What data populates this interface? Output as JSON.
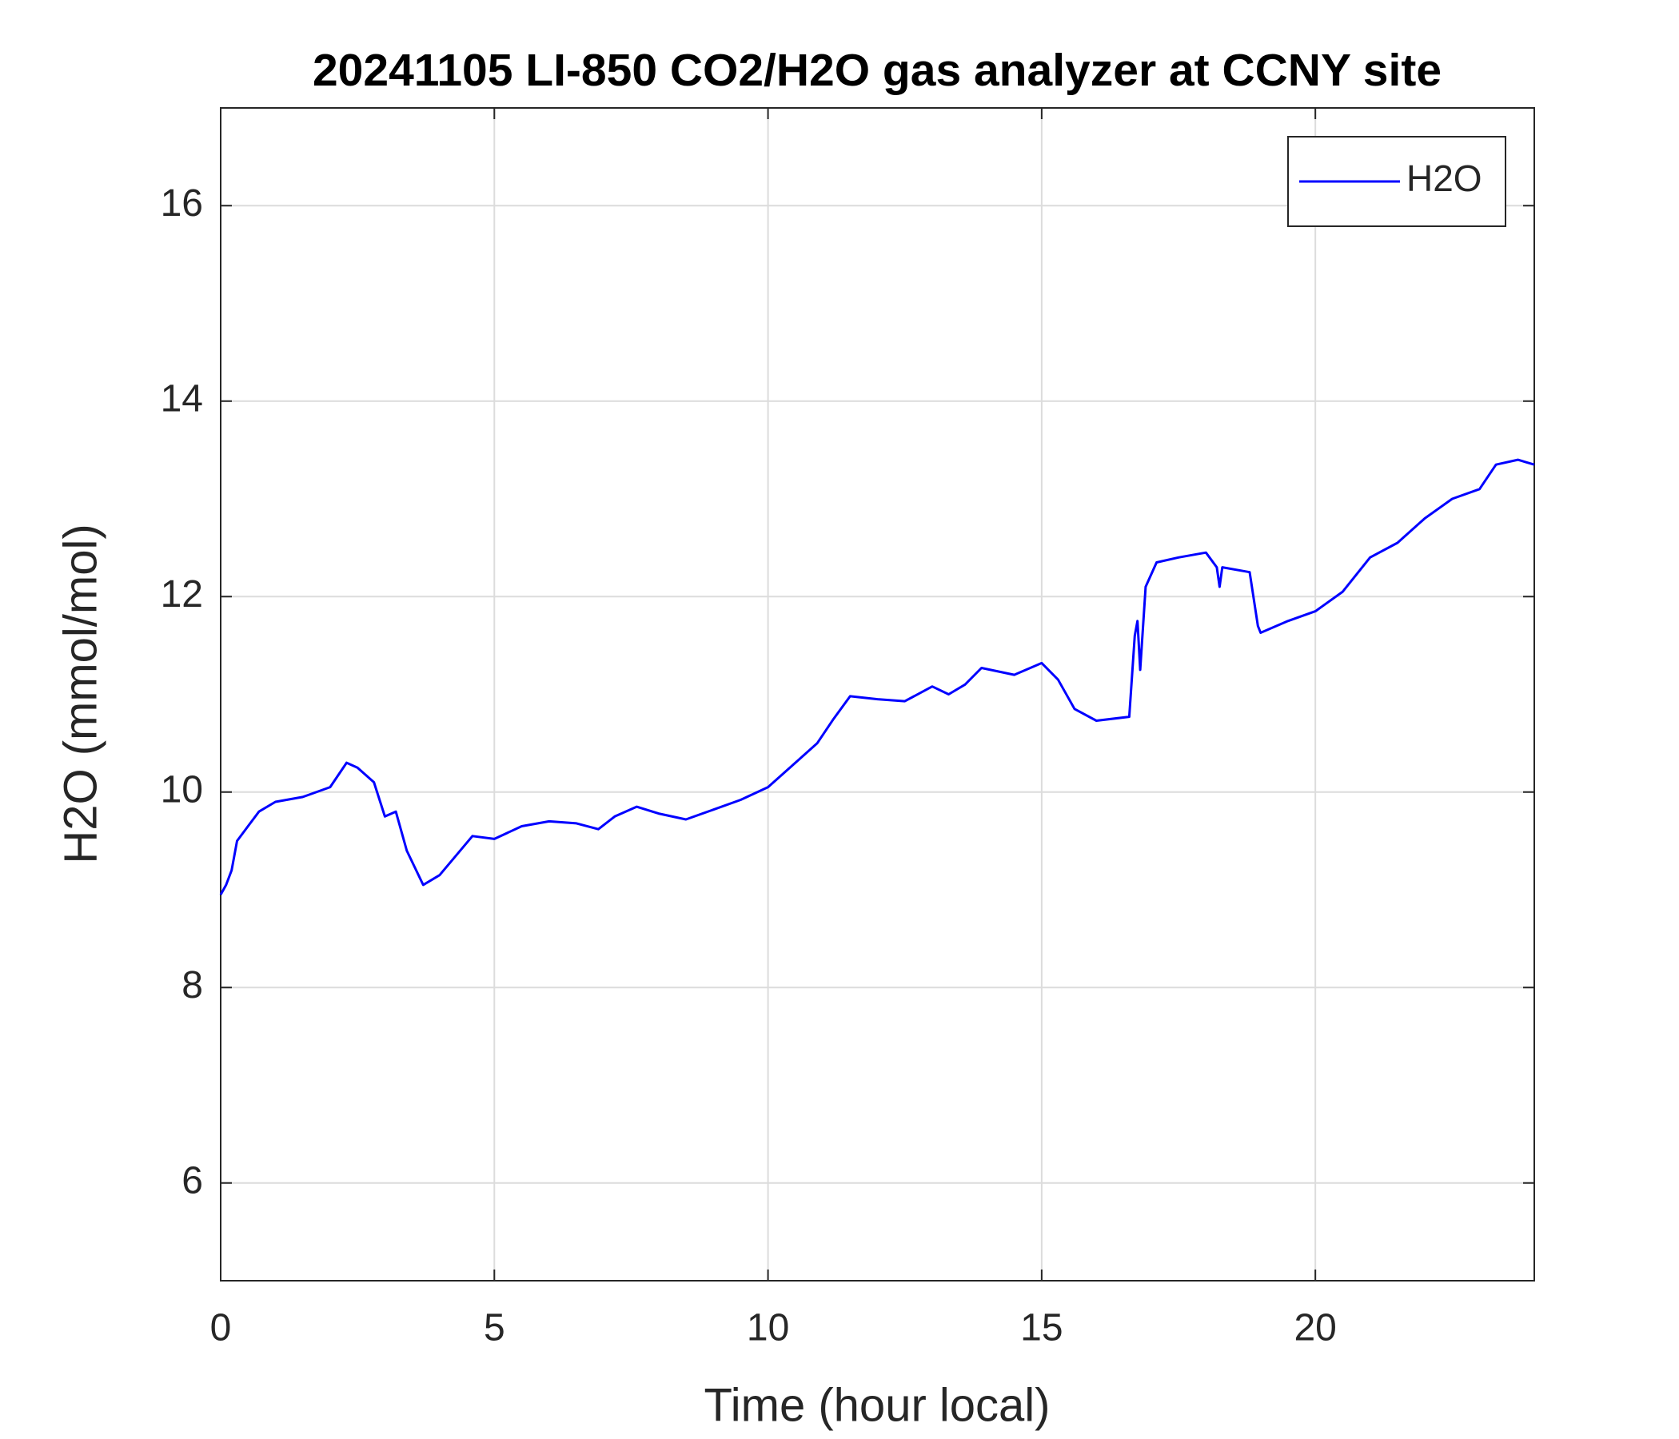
{
  "chart_data": {
    "type": "line",
    "title": "20241105 LI-850 CO2/H2O gas analyzer at CCNY site",
    "xlabel": "Time (hour local)",
    "ylabel": "H2O (mmol/mol)",
    "x": [
      0,
      0.1,
      0.2,
      0.3,
      0.5,
      0.7,
      1.0,
      1.5,
      2.0,
      2.3,
      2.5,
      2.8,
      3.0,
      3.2,
      3.4,
      3.7,
      4.0,
      4.3,
      4.6,
      5.0,
      5.5,
      6.0,
      6.5,
      6.9,
      7.2,
      7.6,
      8.0,
      8.5,
      9.0,
      9.5,
      10.0,
      10.5,
      10.9,
      11.2,
      11.5,
      12.0,
      12.5,
      13.0,
      13.3,
      13.6,
      13.9,
      14.5,
      15.0,
      15.3,
      15.6,
      16.0,
      16.6,
      16.7,
      16.75,
      16.8,
      16.9,
      17.1,
      17.5,
      18.0,
      18.2,
      18.25,
      18.3,
      18.8,
      18.95,
      19.0,
      19.5,
      20.0,
      20.5,
      21.0,
      21.5,
      22.0,
      22.5,
      23.0,
      23.3,
      23.7,
      24.0
    ],
    "series": [
      {
        "name": "H2O",
        "color": "#0000ff",
        "values": [
          8.95,
          9.05,
          9.2,
          9.5,
          9.65,
          9.8,
          9.9,
          9.95,
          10.05,
          10.3,
          10.25,
          10.1,
          9.75,
          9.8,
          9.4,
          9.05,
          9.15,
          9.35,
          9.55,
          9.52,
          9.65,
          9.7,
          9.68,
          9.62,
          9.75,
          9.85,
          9.78,
          9.72,
          9.82,
          9.92,
          10.05,
          10.3,
          10.5,
          10.75,
          10.98,
          10.95,
          10.93,
          11.08,
          11.0,
          11.1,
          11.27,
          11.2,
          11.32,
          11.15,
          10.85,
          10.73,
          10.77,
          11.6,
          11.75,
          11.25,
          12.1,
          12.35,
          12.4,
          12.45,
          12.3,
          12.1,
          12.3,
          12.25,
          11.7,
          11.63,
          11.75,
          11.85,
          12.05,
          12.4,
          12.55,
          12.8,
          13.0,
          13.1,
          13.35,
          13.4,
          13.35
        ]
      }
    ],
    "xlim": [
      0,
      24
    ],
    "xticks": [
      0,
      5,
      10,
      15,
      20
    ],
    "ylim": [
      5,
      17
    ],
    "yticks": [
      6,
      8,
      10,
      12,
      14,
      16
    ],
    "grid": true,
    "legend": "northeast"
  }
}
